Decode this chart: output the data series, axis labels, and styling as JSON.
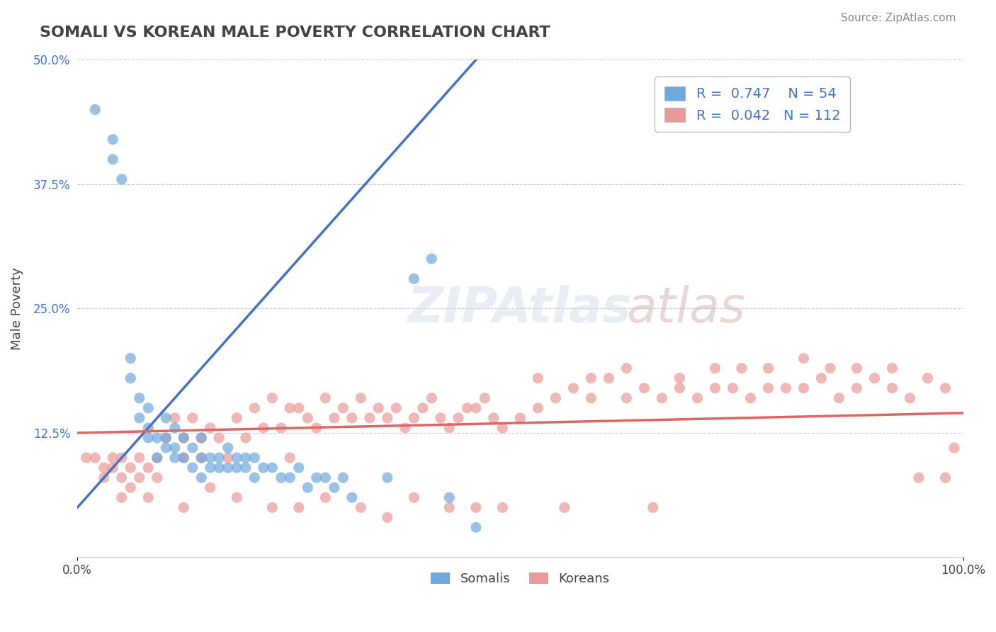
{
  "title": "SOMALI VS KOREAN MALE POVERTY CORRELATION CHART",
  "source": "Source: ZipAtlas.com",
  "ylabel": "Male Poverty",
  "xlabel": "",
  "xlim": [
    0,
    1.0
  ],
  "ylim": [
    0,
    0.5
  ],
  "yticks": [
    0.0,
    0.125,
    0.25,
    0.375,
    0.5
  ],
  "ytick_labels": [
    "",
    "12.5%",
    "25.0%",
    "37.5%",
    "50.0%"
  ],
  "xtick_labels": [
    "0.0%",
    "100.0%"
  ],
  "somali_R": 0.747,
  "somali_N": 54,
  "korean_R": 0.042,
  "korean_N": 112,
  "somali_color": "#6fa8dc",
  "korean_color": "#ea9999",
  "somali_line_color": "#4472c4",
  "korean_line_color": "#e06666",
  "background_color": "#ffffff",
  "grid_color": "#cccccc",
  "title_color": "#434343",
  "label_color": "#434343",
  "legend_text_color": "#4472c4",
  "somali_points_x": [
    0.02,
    0.04,
    0.04,
    0.05,
    0.06,
    0.06,
    0.07,
    0.07,
    0.08,
    0.08,
    0.08,
    0.09,
    0.09,
    0.1,
    0.1,
    0.1,
    0.11,
    0.11,
    0.11,
    0.12,
    0.12,
    0.13,
    0.13,
    0.14,
    0.14,
    0.14,
    0.15,
    0.15,
    0.16,
    0.16,
    0.17,
    0.17,
    0.18,
    0.18,
    0.19,
    0.19,
    0.2,
    0.2,
    0.21,
    0.22,
    0.23,
    0.24,
    0.25,
    0.26,
    0.27,
    0.28,
    0.29,
    0.3,
    0.31,
    0.35,
    0.38,
    0.4,
    0.42,
    0.45
  ],
  "somali_points_y": [
    0.45,
    0.42,
    0.4,
    0.38,
    0.18,
    0.2,
    0.14,
    0.16,
    0.12,
    0.13,
    0.15,
    0.1,
    0.12,
    0.11,
    0.12,
    0.14,
    0.1,
    0.11,
    0.13,
    0.1,
    0.12,
    0.09,
    0.11,
    0.08,
    0.1,
    0.12,
    0.09,
    0.1,
    0.09,
    0.1,
    0.09,
    0.11,
    0.09,
    0.1,
    0.09,
    0.1,
    0.08,
    0.1,
    0.09,
    0.09,
    0.08,
    0.08,
    0.09,
    0.07,
    0.08,
    0.08,
    0.07,
    0.08,
    0.06,
    0.08,
    0.28,
    0.3,
    0.06,
    0.03
  ],
  "korean_points_x": [
    0.01,
    0.02,
    0.03,
    0.03,
    0.04,
    0.05,
    0.05,
    0.06,
    0.06,
    0.07,
    0.07,
    0.08,
    0.09,
    0.09,
    0.1,
    0.11,
    0.12,
    0.12,
    0.13,
    0.14,
    0.15,
    0.16,
    0.17,
    0.18,
    0.19,
    0.2,
    0.21,
    0.22,
    0.23,
    0.24,
    0.25,
    0.26,
    0.27,
    0.28,
    0.29,
    0.3,
    0.31,
    0.32,
    0.33,
    0.34,
    0.35,
    0.36,
    0.37,
    0.38,
    0.39,
    0.4,
    0.41,
    0.42,
    0.43,
    0.44,
    0.45,
    0.46,
    0.47,
    0.48,
    0.5,
    0.52,
    0.54,
    0.56,
    0.58,
    0.6,
    0.62,
    0.64,
    0.66,
    0.68,
    0.7,
    0.72,
    0.74,
    0.76,
    0.78,
    0.8,
    0.82,
    0.84,
    0.86,
    0.88,
    0.9,
    0.92,
    0.94,
    0.96,
    0.98,
    0.99,
    0.15,
    0.25,
    0.35,
    0.45,
    0.55,
    0.65,
    0.75,
    0.85,
    0.95,
    0.05,
    0.08,
    0.12,
    0.18,
    0.22,
    0.28,
    0.32,
    0.38,
    0.42,
    0.48,
    0.52,
    0.58,
    0.62,
    0.68,
    0.72,
    0.78,
    0.82,
    0.88,
    0.92,
    0.98,
    0.04,
    0.14,
    0.24
  ],
  "korean_points_y": [
    0.1,
    0.1,
    0.09,
    0.08,
    0.09,
    0.1,
    0.08,
    0.09,
    0.07,
    0.1,
    0.08,
    0.09,
    0.1,
    0.08,
    0.12,
    0.14,
    0.12,
    0.1,
    0.14,
    0.12,
    0.13,
    0.12,
    0.1,
    0.14,
    0.12,
    0.15,
    0.13,
    0.16,
    0.13,
    0.15,
    0.15,
    0.14,
    0.13,
    0.16,
    0.14,
    0.15,
    0.14,
    0.16,
    0.14,
    0.15,
    0.14,
    0.15,
    0.13,
    0.14,
    0.15,
    0.16,
    0.14,
    0.13,
    0.14,
    0.15,
    0.15,
    0.16,
    0.14,
    0.13,
    0.14,
    0.15,
    0.16,
    0.17,
    0.16,
    0.18,
    0.16,
    0.17,
    0.16,
    0.17,
    0.16,
    0.17,
    0.17,
    0.16,
    0.17,
    0.17,
    0.17,
    0.18,
    0.16,
    0.17,
    0.18,
    0.17,
    0.16,
    0.18,
    0.17,
    0.11,
    0.07,
    0.05,
    0.04,
    0.05,
    0.05,
    0.05,
    0.19,
    0.19,
    0.08,
    0.06,
    0.06,
    0.05,
    0.06,
    0.05,
    0.06,
    0.05,
    0.06,
    0.05,
    0.05,
    0.18,
    0.18,
    0.19,
    0.18,
    0.19,
    0.19,
    0.2,
    0.19,
    0.19,
    0.08,
    0.1,
    0.1,
    0.1
  ]
}
